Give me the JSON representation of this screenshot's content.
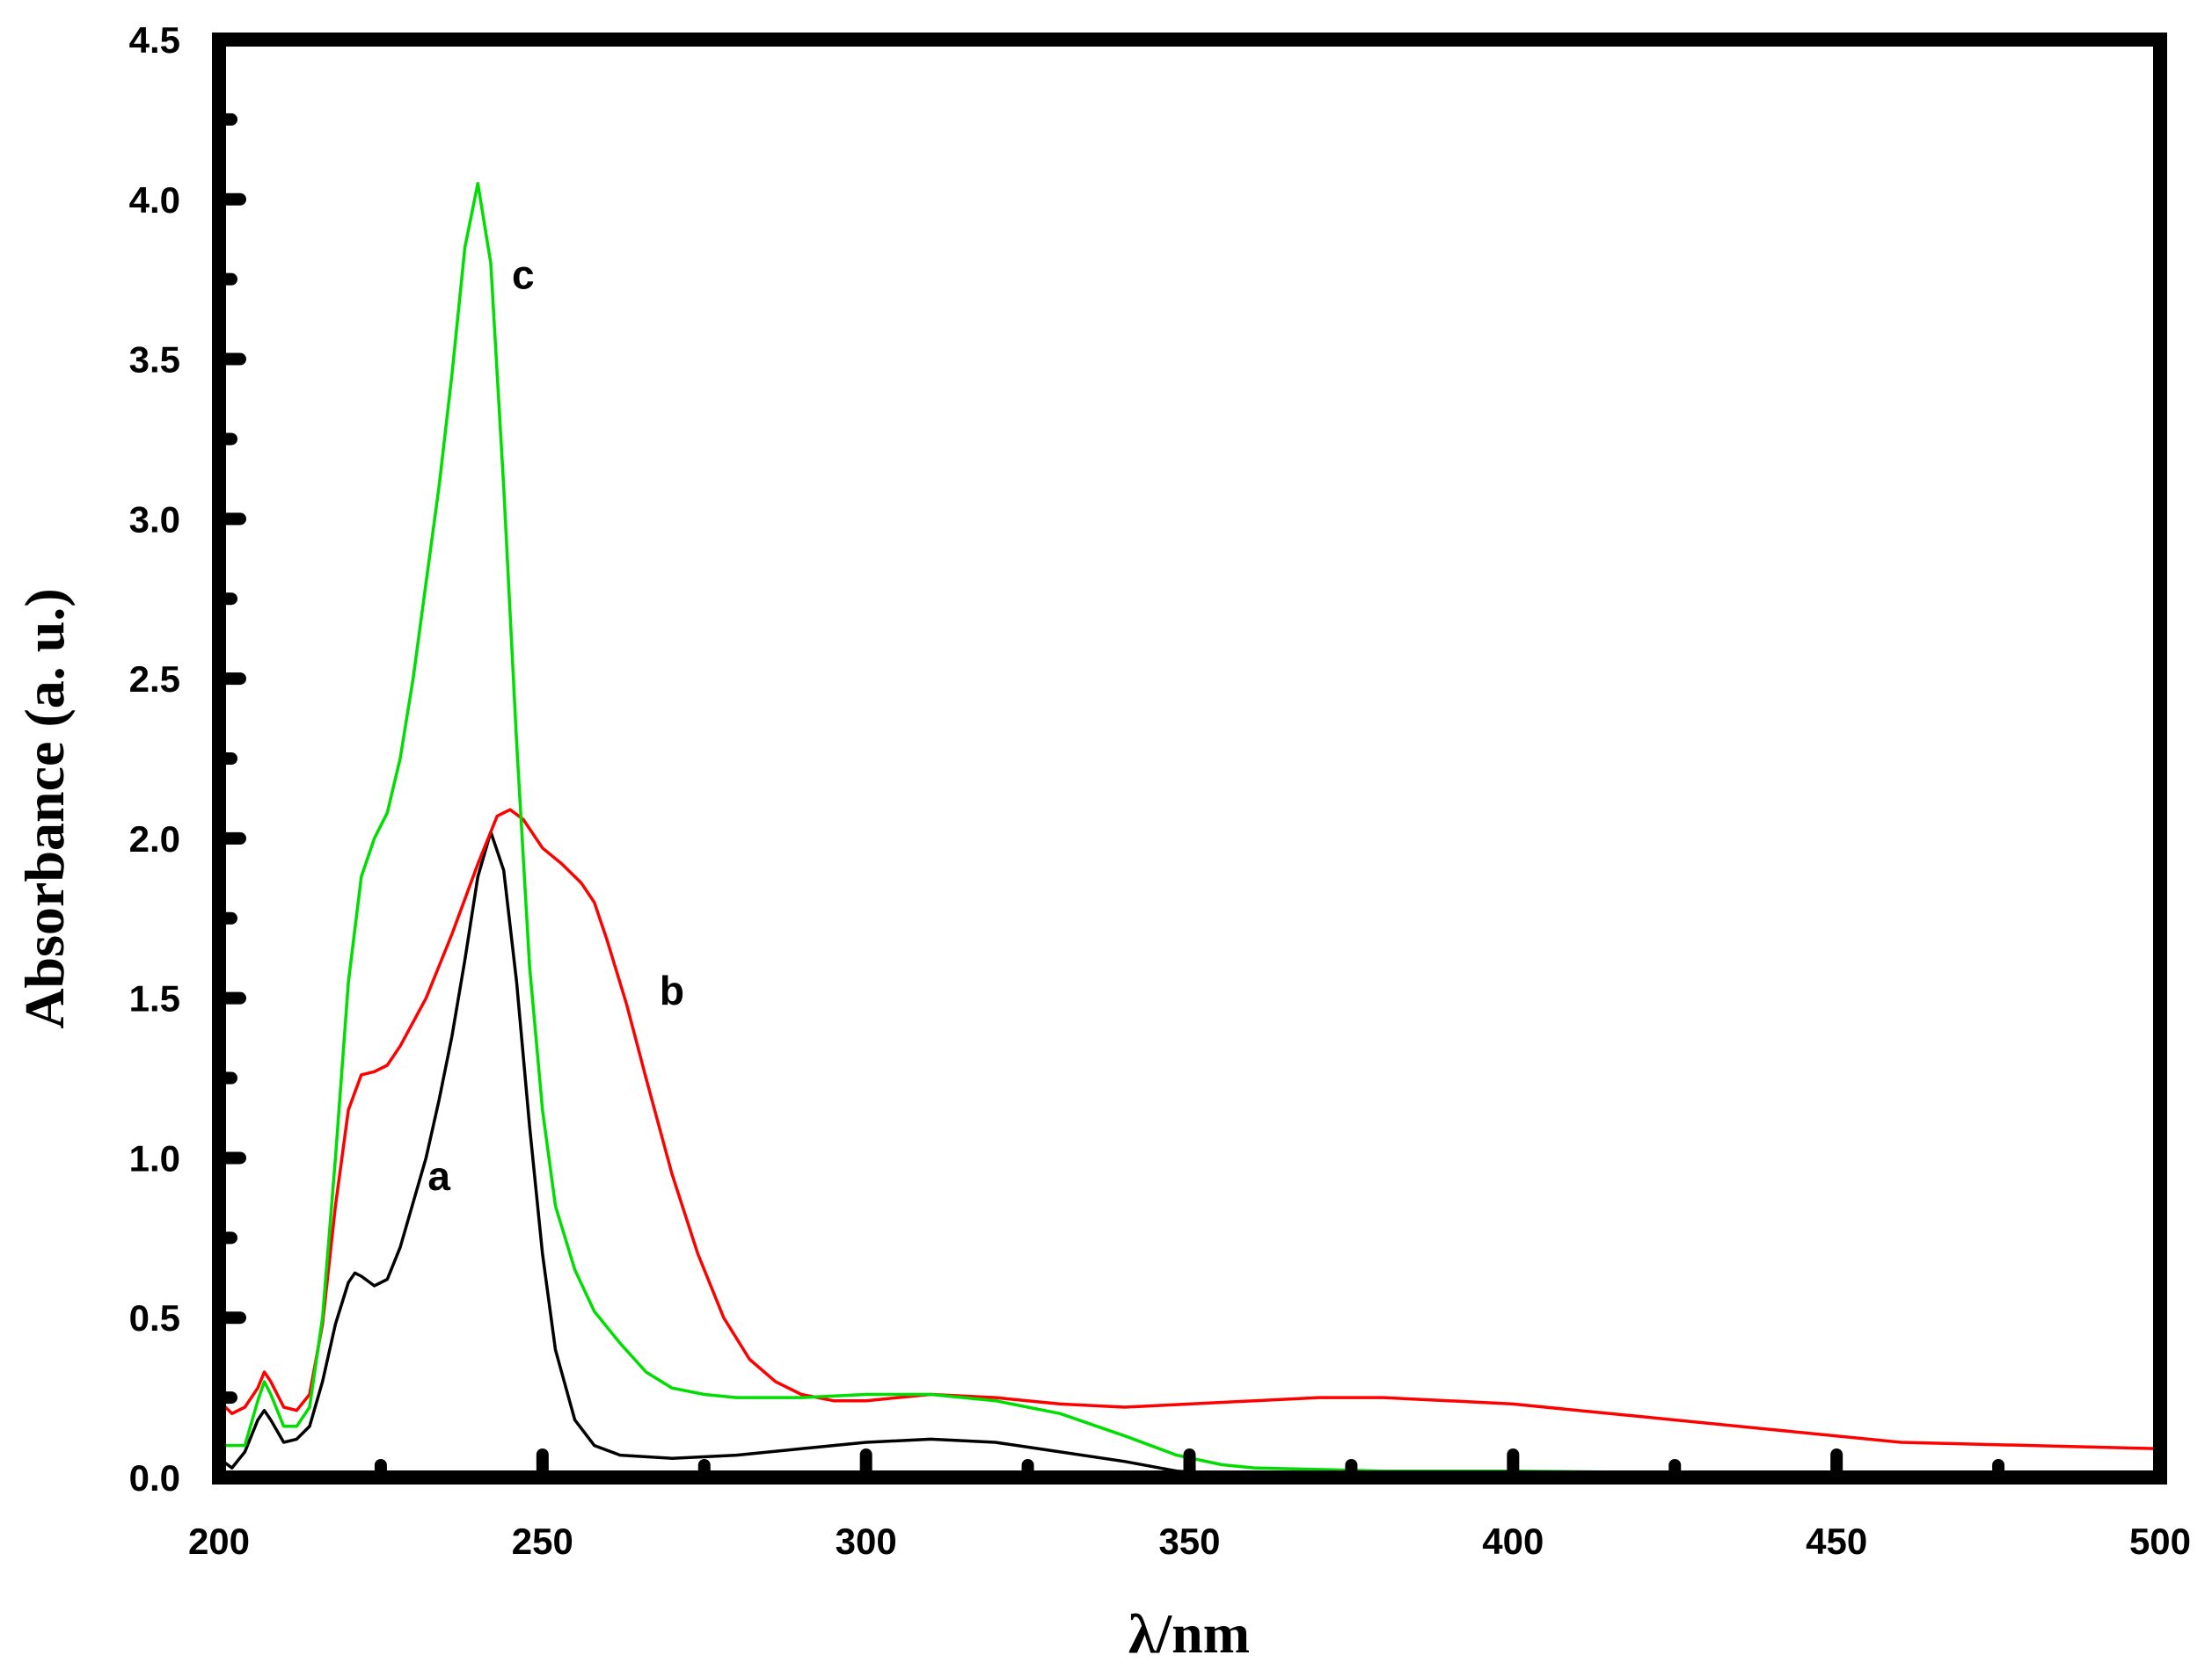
{
  "chart_data": {
    "type": "line",
    "title": "",
    "xlabel": "λ/nm",
    "ylabel": "Absorbance (a. u.)",
    "xlim": [
      200,
      500
    ],
    "ylim": [
      0.0,
      4.5
    ],
    "x_ticks": [
      "200",
      "250",
      "300",
      "350",
      "400",
      "450",
      "500"
    ],
    "y_ticks": [
      "0.0",
      "0.5",
      "1.0",
      "1.5",
      "2.0",
      "2.5",
      "3.0",
      "3.5",
      "4.0",
      "4.5"
    ],
    "grid": false,
    "legend": "none",
    "series": [
      {
        "name": "a",
        "color": "#000000",
        "points": [
          [
            200,
            0.06
          ],
          [
            202,
            0.03
          ],
          [
            204,
            0.08
          ],
          [
            206,
            0.18
          ],
          [
            207,
            0.21
          ],
          [
            208,
            0.18
          ],
          [
            210,
            0.11
          ],
          [
            212,
            0.12
          ],
          [
            214,
            0.16
          ],
          [
            216,
            0.3
          ],
          [
            218,
            0.48
          ],
          [
            220,
            0.61
          ],
          [
            221,
            0.64
          ],
          [
            222,
            0.63
          ],
          [
            224,
            0.6
          ],
          [
            226,
            0.62
          ],
          [
            228,
            0.72
          ],
          [
            230,
            0.86
          ],
          [
            232,
            1.0
          ],
          [
            234,
            1.18
          ],
          [
            236,
            1.38
          ],
          [
            238,
            1.62
          ],
          [
            240,
            1.88
          ],
          [
            242,
            2.02
          ],
          [
            244,
            1.9
          ],
          [
            246,
            1.55
          ],
          [
            248,
            1.1
          ],
          [
            250,
            0.7
          ],
          [
            252,
            0.4
          ],
          [
            255,
            0.18
          ],
          [
            258,
            0.1
          ],
          [
            262,
            0.07
          ],
          [
            270,
            0.06
          ],
          [
            280,
            0.07
          ],
          [
            290,
            0.09
          ],
          [
            300,
            0.11
          ],
          [
            310,
            0.12
          ],
          [
            320,
            0.11
          ],
          [
            330,
            0.08
          ],
          [
            340,
            0.05
          ],
          [
            348,
            0.02
          ],
          [
            355,
            0.01
          ],
          [
            370,
            0.01
          ],
          [
            400,
            0.01
          ],
          [
            450,
            0.01
          ],
          [
            500,
            0.01
          ]
        ]
      },
      {
        "name": "b",
        "color": "#ff0000",
        "points": [
          [
            200,
            0.24
          ],
          [
            202,
            0.2
          ],
          [
            204,
            0.22
          ],
          [
            206,
            0.28
          ],
          [
            207,
            0.33
          ],
          [
            208,
            0.3
          ],
          [
            210,
            0.22
          ],
          [
            212,
            0.21
          ],
          [
            214,
            0.26
          ],
          [
            216,
            0.48
          ],
          [
            218,
            0.85
          ],
          [
            220,
            1.15
          ],
          [
            222,
            1.26
          ],
          [
            224,
            1.27
          ],
          [
            226,
            1.29
          ],
          [
            228,
            1.35
          ],
          [
            232,
            1.5
          ],
          [
            236,
            1.7
          ],
          [
            240,
            1.92
          ],
          [
            243,
            2.07
          ],
          [
            245,
            2.09
          ],
          [
            247,
            2.06
          ],
          [
            250,
            1.97
          ],
          [
            253,
            1.92
          ],
          [
            256,
            1.86
          ],
          [
            258,
            1.8
          ],
          [
            260,
            1.68
          ],
          [
            263,
            1.48
          ],
          [
            266,
            1.25
          ],
          [
            270,
            0.95
          ],
          [
            274,
            0.7
          ],
          [
            278,
            0.5
          ],
          [
            282,
            0.37
          ],
          [
            286,
            0.3
          ],
          [
            290,
            0.26
          ],
          [
            295,
            0.24
          ],
          [
            300,
            0.24
          ],
          [
            310,
            0.26
          ],
          [
            320,
            0.25
          ],
          [
            330,
            0.23
          ],
          [
            340,
            0.22
          ],
          [
            350,
            0.23
          ],
          [
            360,
            0.24
          ],
          [
            370,
            0.25
          ],
          [
            380,
            0.25
          ],
          [
            390,
            0.24
          ],
          [
            400,
            0.23
          ],
          [
            420,
            0.19
          ],
          [
            440,
            0.15
          ],
          [
            460,
            0.11
          ],
          [
            480,
            0.1
          ],
          [
            500,
            0.09
          ]
        ]
      },
      {
        "name": "c",
        "color": "#00dd00",
        "points": [
          [
            200,
            0.1
          ],
          [
            202,
            0.1
          ],
          [
            204,
            0.1
          ],
          [
            206,
            0.24
          ],
          [
            207,
            0.3
          ],
          [
            208,
            0.26
          ],
          [
            210,
            0.16
          ],
          [
            212,
            0.16
          ],
          [
            214,
            0.22
          ],
          [
            216,
            0.5
          ],
          [
            218,
            1.0
          ],
          [
            220,
            1.55
          ],
          [
            222,
            1.88
          ],
          [
            224,
            2.0
          ],
          [
            226,
            2.08
          ],
          [
            228,
            2.25
          ],
          [
            230,
            2.5
          ],
          [
            232,
            2.8
          ],
          [
            234,
            3.1
          ],
          [
            236,
            3.45
          ],
          [
            238,
            3.85
          ],
          [
            240,
            4.05
          ],
          [
            242,
            3.8
          ],
          [
            244,
            3.1
          ],
          [
            246,
            2.3
          ],
          [
            248,
            1.6
          ],
          [
            250,
            1.15
          ],
          [
            252,
            0.85
          ],
          [
            255,
            0.65
          ],
          [
            258,
            0.52
          ],
          [
            262,
            0.42
          ],
          [
            266,
            0.33
          ],
          [
            270,
            0.28
          ],
          [
            275,
            0.26
          ],
          [
            280,
            0.25
          ],
          [
            290,
            0.25
          ],
          [
            300,
            0.26
          ],
          [
            310,
            0.26
          ],
          [
            320,
            0.24
          ],
          [
            330,
            0.2
          ],
          [
            340,
            0.13
          ],
          [
            348,
            0.07
          ],
          [
            355,
            0.04
          ],
          [
            360,
            0.03
          ],
          [
            380,
            0.02
          ],
          [
            400,
            0.02
          ],
          [
            450,
            0.01
          ],
          [
            500,
            0.01
          ]
        ]
      }
    ],
    "annotations": [
      {
        "text": "a",
        "x": 234,
        "y": 0.9
      },
      {
        "text": "b",
        "x": 270,
        "y": 1.48
      },
      {
        "text": "c",
        "x": 247,
        "y": 3.72
      }
    ]
  }
}
